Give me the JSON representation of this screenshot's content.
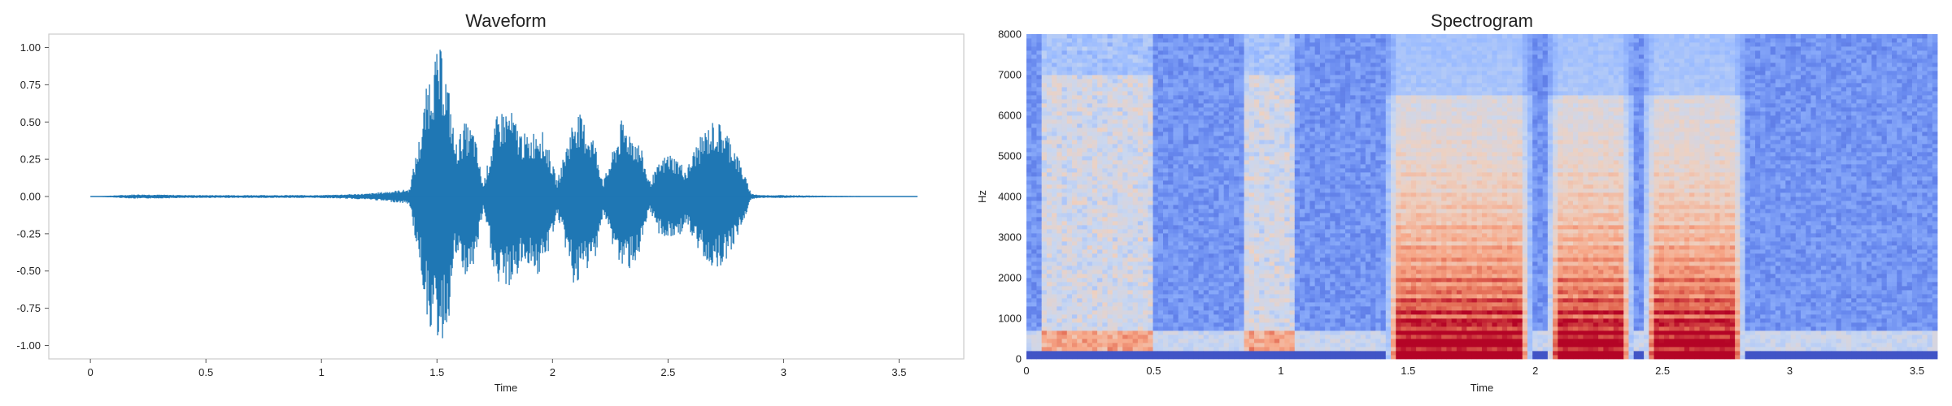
{
  "chart_data": [
    {
      "type": "line",
      "title": "Waveform",
      "xlabel": "Time",
      "ylabel": "",
      "xlim": [
        -0.18,
        3.78
      ],
      "ylim": [
        -1.09,
        1.09
      ],
      "x_ticks": [
        0,
        0.5,
        1,
        1.5,
        2,
        2.5,
        3,
        3.5
      ],
      "x_tick_labels": [
        "0",
        "0.5",
        "1",
        "1.5",
        "2",
        "2.5",
        "3",
        "3.5"
      ],
      "y_ticks": [
        1.0,
        0.75,
        0.5,
        0.25,
        0.0,
        -0.25,
        -0.5,
        -0.75,
        -1.0
      ],
      "y_tick_labels": [
        "1.00",
        "0.75",
        "0.50",
        "0.25",
        "0.00",
        "-0.25",
        "-0.50",
        "-0.75",
        "-1.00"
      ],
      "grid": false,
      "color": "#1f77b4",
      "duration": 3.58,
      "envelope": {
        "time": [
          0,
          0.2,
          0.45,
          0.75,
          1.0,
          1.2,
          1.38,
          1.43,
          1.46,
          1.49,
          1.52,
          1.55,
          1.58,
          1.62,
          1.66,
          1.7,
          1.73,
          1.76,
          1.79,
          1.82,
          1.86,
          1.9,
          1.94,
          1.98,
          2.02,
          2.06,
          2.1,
          2.14,
          2.18,
          2.22,
          2.26,
          2.3,
          2.34,
          2.38,
          2.42,
          2.46,
          2.5,
          2.54,
          2.58,
          2.62,
          2.66,
          2.7,
          2.74,
          2.78,
          2.82,
          2.86,
          2.9,
          3.0,
          3.2,
          3.58
        ],
        "upper": [
          0.0,
          0.015,
          0.01,
          0.01,
          0.01,
          0.02,
          0.05,
          0.45,
          0.8,
          0.95,
          1.0,
          0.75,
          0.35,
          0.5,
          0.45,
          0.08,
          0.3,
          0.55,
          0.6,
          0.58,
          0.45,
          0.4,
          0.5,
          0.35,
          0.1,
          0.35,
          0.6,
          0.5,
          0.4,
          0.1,
          0.3,
          0.52,
          0.45,
          0.35,
          0.1,
          0.22,
          0.3,
          0.26,
          0.18,
          0.35,
          0.45,
          0.52,
          0.48,
          0.38,
          0.2,
          0.02,
          0.01,
          0.01,
          0.005,
          0.0
        ],
        "lower": [
          0.0,
          -0.015,
          -0.01,
          -0.01,
          -0.01,
          -0.02,
          -0.05,
          -0.5,
          -0.85,
          -0.95,
          -1.0,
          -0.85,
          -0.4,
          -0.55,
          -0.5,
          -0.1,
          -0.35,
          -0.65,
          -0.6,
          -0.62,
          -0.5,
          -0.45,
          -0.55,
          -0.4,
          -0.12,
          -0.38,
          -0.65,
          -0.52,
          -0.45,
          -0.12,
          -0.33,
          -0.5,
          -0.48,
          -0.4,
          -0.1,
          -0.25,
          -0.3,
          -0.28,
          -0.2,
          -0.35,
          -0.42,
          -0.5,
          -0.45,
          -0.35,
          -0.2,
          -0.02,
          -0.01,
          -0.01,
          -0.005,
          0.0
        ]
      }
    },
    {
      "type": "heatmap",
      "title": "Spectrogram",
      "xlabel": "Time",
      "ylabel": "Hz",
      "xlim": [
        0,
        3.58
      ],
      "ylim": [
        0,
        8000
      ],
      "x_ticks": [
        0,
        0.5,
        1,
        1.5,
        2,
        2.5,
        3,
        3.5
      ],
      "x_tick_labels": [
        "0",
        "0.5",
        "1",
        "1.5",
        "2",
        "2.5",
        "3",
        "3.5"
      ],
      "y_ticks": [
        0,
        1000,
        2000,
        3000,
        4000,
        5000,
        6000,
        7000,
        8000
      ],
      "y_tick_labels": [
        "0",
        "1000",
        "2000",
        "3000",
        "4000",
        "5000",
        "6000",
        "7000",
        "8000"
      ],
      "grid": false,
      "colormap": [
        "#3b4cc0",
        "#6788ee",
        "#9abbff",
        "#c9d7f0",
        "#edd1c2",
        "#f7a889",
        "#e26952",
        "#b40426"
      ],
      "voiced_segments": [
        {
          "start": 1.42,
          "end": 1.98,
          "pitch_hz": 260
        },
        {
          "start": 2.05,
          "end": 2.38,
          "pitch_hz": 260
        },
        {
          "start": 2.43,
          "end": 2.82,
          "pitch_hz": 270
        }
      ],
      "breath_bands": [
        {
          "start": 0.05,
          "end": 0.5
        },
        {
          "start": 0.85,
          "end": 1.05
        }
      ]
    }
  ]
}
